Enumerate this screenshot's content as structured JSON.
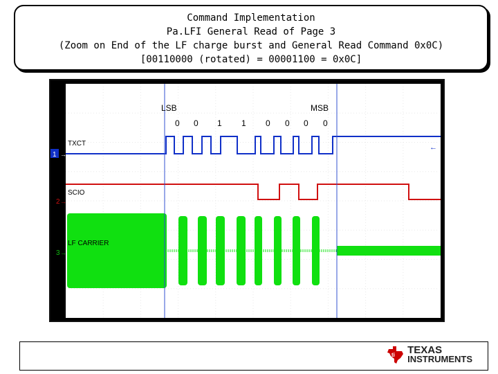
{
  "header": {
    "line1": "Command Implementation",
    "line2": "Pa.LFI General Read of Page 3",
    "line3": "(Zoom on End of the LF charge burst and General Read Command 0x0C)",
    "line4": "[00110000 (rotated) = 00001100 = 0x0C]"
  },
  "scope": {
    "lsb_label": "LSB",
    "msb_label": "MSB",
    "bits": [
      "0",
      "0",
      "1",
      "1",
      "0",
      "0",
      "0",
      "0"
    ],
    "channels": [
      {
        "name": "TXCT",
        "number": "1",
        "color": "#1030c8"
      },
      {
        "name": "SCIO",
        "number": "2",
        "color": "#d01010"
      },
      {
        "name": "LF CARRIER",
        "number": "3",
        "color": "#10e010"
      }
    ],
    "cursor_color": "#3050d0",
    "grid_color": "#e8e8e8"
  },
  "footer": {
    "logo_line1": "TEXAS",
    "logo_line2": "INSTRUMENTS",
    "logo_color": "#cc0000"
  }
}
